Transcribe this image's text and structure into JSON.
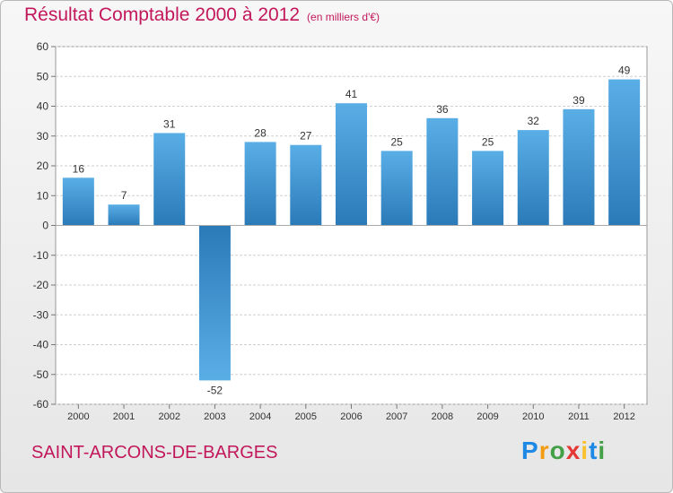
{
  "chart_data": {
    "type": "bar",
    "title": "Résultat Comptable 2000 à 2012",
    "subtitle": "(en milliers d'€)",
    "categories": [
      "2000",
      "2001",
      "2002",
      "2003",
      "2004",
      "2005",
      "2006",
      "2007",
      "2008",
      "2009",
      "2010",
      "2011",
      "2012"
    ],
    "values": [
      16,
      7,
      31,
      -52,
      28,
      27,
      41,
      25,
      36,
      25,
      32,
      39,
      49
    ],
    "ylim": [
      -60,
      60
    ],
    "yticks": [
      60,
      50,
      40,
      30,
      20,
      10,
      0,
      -10,
      -20,
      -30,
      -40,
      -50,
      -60
    ],
    "grid": true,
    "xlabel": "",
    "ylabel": "",
    "bar_color_top": "#5aaee6",
    "bar_color_bottom": "#2a7ab8"
  },
  "footer": {
    "commune": "SAINT-ARCONS-DE-BARGES",
    "logo_letters": [
      "P",
      "r",
      "o",
      "x",
      "i",
      "t",
      "i"
    ],
    "logo_colors": [
      "#1e88e5",
      "#f39c12",
      "#43a047",
      "#e53935",
      "#fbc02d",
      "#1e88e5",
      "#43a047"
    ]
  }
}
